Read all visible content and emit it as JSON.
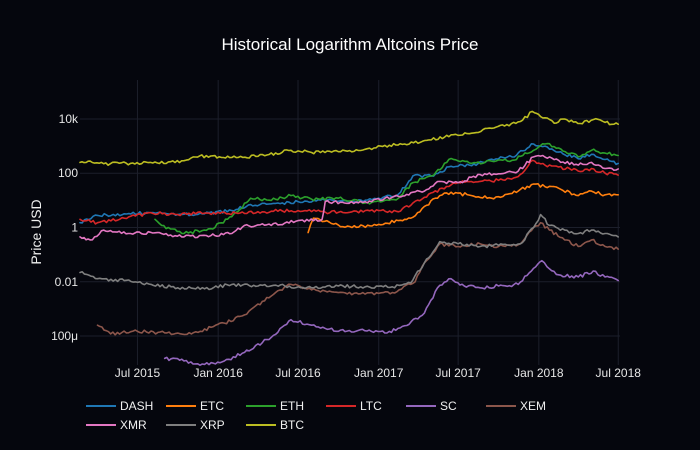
{
  "chart_data": {
    "type": "line",
    "title": "Historical Logarithm Altcoins Price",
    "xlabel": "",
    "ylabel": "Price USD",
    "y_scale": "log",
    "ylim": [
      "0.00002",
      "50000"
    ],
    "xlim": [
      "2015-02-20",
      "2018-07-05"
    ],
    "grid": true,
    "legend_position": "bottom",
    "x_ticks": [
      {
        "date": "2015-07-01",
        "label": "Jul 2015"
      },
      {
        "date": "2016-01-01",
        "label": "Jan 2016"
      },
      {
        "date": "2016-07-01",
        "label": "Jul 2016"
      },
      {
        "date": "2017-01-01",
        "label": "Jan 2017"
      },
      {
        "date": "2017-07-01",
        "label": "Jul 2017"
      },
      {
        "date": "2018-01-01",
        "label": "Jan 2018"
      },
      {
        "date": "2018-07-01",
        "label": "Jul 2018"
      }
    ],
    "y_ticks": [
      {
        "value": 0.0001,
        "label": "100μ"
      },
      {
        "value": 0.01,
        "label": "0.01"
      },
      {
        "value": 1,
        "label": "1"
      },
      {
        "value": 100,
        "label": "100"
      },
      {
        "value": 10000,
        "label": "10k"
      }
    ],
    "series": [
      {
        "name": "DASH",
        "color": "#1f77b4",
        "points": [
          [
            "2015-02-20",
            1.5
          ],
          [
            "2015-04-01",
            2.8
          ],
          [
            "2015-06-01",
            3.2
          ],
          [
            "2015-08-01",
            3.5
          ],
          [
            "2015-10-01",
            3.0
          ],
          [
            "2015-12-01",
            3.2
          ],
          [
            "2016-02-01",
            4.2
          ],
          [
            "2016-03-15",
            7
          ],
          [
            "2016-05-01",
            7.5
          ],
          [
            "2016-07-01",
            9
          ],
          [
            "2016-09-01",
            10
          ],
          [
            "2016-11-01",
            9
          ],
          [
            "2017-01-01",
            12
          ],
          [
            "2017-02-15",
            17
          ],
          [
            "2017-03-20",
            80
          ],
          [
            "2017-05-01",
            80
          ],
          [
            "2017-06-15",
            180
          ],
          [
            "2017-08-01",
            190
          ],
          [
            "2017-09-15",
            330
          ],
          [
            "2017-11-01",
            400
          ],
          [
            "2017-12-20",
            1200
          ],
          [
            "2018-01-15",
            1000
          ],
          [
            "2018-02-15",
            600
          ],
          [
            "2018-04-01",
            340
          ],
          [
            "2018-05-01",
            500
          ],
          [
            "2018-06-01",
            320
          ],
          [
            "2018-07-01",
            230
          ]
        ]
      },
      {
        "name": "ETC",
        "color": "#ff7f0e",
        "points": [
          [
            "2016-07-24",
            0.65
          ],
          [
            "2016-08-05",
            2.2
          ],
          [
            "2016-09-15",
            1.4
          ],
          [
            "2016-11-01",
            1.0
          ],
          [
            "2017-01-01",
            1.3
          ],
          [
            "2017-02-15",
            1.8
          ],
          [
            "2017-03-15",
            2.2
          ],
          [
            "2017-04-15",
            6
          ],
          [
            "2017-05-20",
            15
          ],
          [
            "2017-06-15",
            20
          ],
          [
            "2017-08-01",
            15
          ],
          [
            "2017-09-15",
            12
          ],
          [
            "2017-11-01",
            18
          ],
          [
            "2017-12-20",
            40
          ],
          [
            "2018-01-15",
            32
          ],
          [
            "2018-02-15",
            28
          ],
          [
            "2018-04-01",
            15
          ],
          [
            "2018-05-01",
            22
          ],
          [
            "2018-06-01",
            16
          ],
          [
            "2018-07-01",
            16
          ]
        ]
      },
      {
        "name": "ETH",
        "color": "#2ca02c",
        "points": [
          [
            "2015-08-10",
            2.0
          ],
          [
            "2015-08-25",
            1.2
          ],
          [
            "2015-10-15",
            0.6
          ],
          [
            "2015-12-15",
            0.9
          ],
          [
            "2016-02-01",
            2.5
          ],
          [
            "2016-03-15",
            12
          ],
          [
            "2016-05-01",
            10
          ],
          [
            "2016-06-15",
            15
          ],
          [
            "2016-08-01",
            11
          ],
          [
            "2016-10-01",
            12
          ],
          [
            "2016-12-01",
            8
          ],
          [
            "2017-01-15",
            10
          ],
          [
            "2017-02-15",
            12
          ],
          [
            "2017-03-20",
            45
          ],
          [
            "2017-05-01",
            80
          ],
          [
            "2017-06-15",
            350
          ],
          [
            "2017-08-01",
            230
          ],
          [
            "2017-09-15",
            280
          ],
          [
            "2017-11-01",
            300
          ],
          [
            "2017-12-20",
            700
          ],
          [
            "2018-01-15",
            1200
          ],
          [
            "2018-02-15",
            850
          ],
          [
            "2018-04-01",
            400
          ],
          [
            "2018-05-01",
            700
          ],
          [
            "2018-06-01",
            550
          ],
          [
            "2018-07-01",
            450
          ]
        ]
      },
      {
        "name": "LTC",
        "color": "#d62728",
        "points": [
          [
            "2015-02-20",
            2.0
          ],
          [
            "2015-04-01",
            1.5
          ],
          [
            "2015-06-01",
            2.2
          ],
          [
            "2015-08-01",
            3.5
          ],
          [
            "2015-10-01",
            3.0
          ],
          [
            "2015-12-01",
            3.4
          ],
          [
            "2016-03-01",
            3.3
          ],
          [
            "2016-05-01",
            4
          ],
          [
            "2016-07-01",
            4.2
          ],
          [
            "2016-09-01",
            3.7
          ],
          [
            "2016-11-01",
            3.8
          ],
          [
            "2017-01-01",
            4.2
          ],
          [
            "2017-02-15",
            3.8
          ],
          [
            "2017-03-20",
            8
          ],
          [
            "2017-04-15",
            13
          ],
          [
            "2017-05-25",
            28
          ],
          [
            "2017-07-01",
            45
          ],
          [
            "2017-08-20",
            50
          ],
          [
            "2017-10-01",
            55
          ],
          [
            "2017-11-15",
            75
          ],
          [
            "2017-12-18",
            300
          ],
          [
            "2018-01-15",
            200
          ],
          [
            "2018-02-15",
            170
          ],
          [
            "2018-04-01",
            120
          ],
          [
            "2018-05-01",
            150
          ],
          [
            "2018-06-01",
            100
          ],
          [
            "2018-07-01",
            85
          ]
        ]
      },
      {
        "name": "SC",
        "color": "#9467bd",
        "points": [
          [
            "2015-09-01",
            1.5e-05
          ],
          [
            "2015-10-15",
            1.2e-05
          ],
          [
            "2015-12-01",
            9e-06
          ],
          [
            "2016-01-15",
            1.2e-05
          ],
          [
            "2016-03-01",
            2.5e-05
          ],
          [
            "2016-05-01",
            9e-05
          ],
          [
            "2016-06-15",
            0.0004
          ],
          [
            "2016-08-01",
            0.00025
          ],
          [
            "2016-10-01",
            0.00015
          ],
          [
            "2016-11-15",
            0.00016
          ],
          [
            "2016-12-15",
            0.00015
          ],
          [
            "2017-01-20",
            0.00013
          ],
          [
            "2017-03-01",
            0.00024
          ],
          [
            "2017-04-15",
            0.0007
          ],
          [
            "2017-05-15",
            0.006
          ],
          [
            "2017-06-15",
            0.013
          ],
          [
            "2017-07-15",
            0.007
          ],
          [
            "2017-08-20",
            0.006
          ],
          [
            "2017-10-01",
            0.007
          ],
          [
            "2017-11-15",
            0.008
          ],
          [
            "2017-12-15",
            0.025
          ],
          [
            "2018-01-08",
            0.06
          ],
          [
            "2018-01-25",
            0.03
          ],
          [
            "2018-02-15",
            0.018
          ],
          [
            "2018-04-01",
            0.015
          ],
          [
            "2018-05-05",
            0.025
          ],
          [
            "2018-06-01",
            0.015
          ],
          [
            "2018-07-01",
            0.011
          ]
        ]
      },
      {
        "name": "XEM",
        "color": "#8c564b",
        "points": [
          [
            "2015-04-01",
            0.00025
          ],
          [
            "2015-05-01",
            0.00012
          ],
          [
            "2015-07-01",
            0.00015
          ],
          [
            "2015-09-01",
            0.00013
          ],
          [
            "2015-11-01",
            0.00012
          ],
          [
            "2016-01-15",
            0.0003
          ],
          [
            "2016-03-01",
            0.0006
          ],
          [
            "2016-05-01",
            0.003
          ],
          [
            "2016-06-15",
            0.008
          ],
          [
            "2016-08-01",
            0.005
          ],
          [
            "2016-10-01",
            0.004
          ],
          [
            "2016-12-01",
            0.0035
          ],
          [
            "2017-02-01",
            0.004
          ],
          [
            "2017-03-25",
            0.01
          ],
          [
            "2017-04-15",
            0.05
          ],
          [
            "2017-05-20",
            0.25
          ],
          [
            "2017-07-01",
            0.2
          ],
          [
            "2017-08-20",
            0.25
          ],
          [
            "2017-10-01",
            0.2
          ],
          [
            "2017-11-20",
            0.25
          ],
          [
            "2017-12-20",
            1.0
          ],
          [
            "2018-01-05",
            1.5
          ],
          [
            "2018-01-25",
            0.8
          ],
          [
            "2018-03-01",
            0.35
          ],
          [
            "2018-04-01",
            0.2
          ],
          [
            "2018-05-01",
            0.35
          ],
          [
            "2018-06-01",
            0.2
          ],
          [
            "2018-07-01",
            0.16
          ]
        ]
      },
      {
        "name": "XMR",
        "color": "#e377c2",
        "points": [
          [
            "2015-02-20",
            0.45
          ],
          [
            "2015-03-15",
            0.35
          ],
          [
            "2015-04-15",
            0.8
          ],
          [
            "2015-06-15",
            0.6
          ],
          [
            "2015-08-15",
            0.65
          ],
          [
            "2015-10-15",
            0.45
          ],
          [
            "2015-12-15",
            0.5
          ],
          [
            "2016-02-01",
            0.6
          ],
          [
            "2016-03-01",
            1.2
          ],
          [
            "2016-05-01",
            1.2
          ],
          [
            "2016-07-01",
            1.8
          ],
          [
            "2016-08-25",
            2.0
          ],
          [
            "2016-09-01",
            9
          ],
          [
            "2016-10-15",
            8
          ],
          [
            "2016-12-01",
            9
          ],
          [
            "2017-01-15",
            12
          ],
          [
            "2017-02-15",
            14
          ],
          [
            "2017-03-20",
            20
          ],
          [
            "2017-04-15",
            22
          ],
          [
            "2017-05-20",
            50
          ],
          [
            "2017-07-01",
            45
          ],
          [
            "2017-08-20",
            90
          ],
          [
            "2017-10-01",
            95
          ],
          [
            "2017-11-15",
            120
          ],
          [
            "2017-12-20",
            400
          ],
          [
            "2018-01-10",
            450
          ],
          [
            "2018-02-15",
            300
          ],
          [
            "2018-04-01",
            200
          ],
          [
            "2018-05-01",
            250
          ],
          [
            "2018-06-01",
            150
          ],
          [
            "2018-07-01",
            145
          ]
        ]
      },
      {
        "name": "XRP",
        "color": "#7f7f7f",
        "points": [
          [
            "2015-02-20",
            0.022
          ],
          [
            "2015-04-01",
            0.013
          ],
          [
            "2015-06-01",
            0.011
          ],
          [
            "2015-08-01",
            0.008
          ],
          [
            "2015-10-01",
            0.006
          ],
          [
            "2015-12-01",
            0.0055
          ],
          [
            "2016-02-01",
            0.008
          ],
          [
            "2016-04-01",
            0.007
          ],
          [
            "2016-06-01",
            0.007
          ],
          [
            "2016-08-01",
            0.006
          ],
          [
            "2016-10-01",
            0.007
          ],
          [
            "2016-12-01",
            0.0065
          ],
          [
            "2017-02-01",
            0.0065
          ],
          [
            "2017-03-15",
            0.009
          ],
          [
            "2017-04-15",
            0.05
          ],
          [
            "2017-05-20",
            0.3
          ],
          [
            "2017-07-01",
            0.25
          ],
          [
            "2017-08-20",
            0.2
          ],
          [
            "2017-10-01",
            0.22
          ],
          [
            "2017-11-20",
            0.25
          ],
          [
            "2017-12-20",
            1.0
          ],
          [
            "2018-01-05",
            3.0
          ],
          [
            "2018-01-25",
            1.2
          ],
          [
            "2018-03-01",
            0.8
          ],
          [
            "2018-04-01",
            0.6
          ],
          [
            "2018-05-01",
            0.8
          ],
          [
            "2018-06-01",
            0.6
          ],
          [
            "2018-07-01",
            0.45
          ]
        ]
      },
      {
        "name": "BTC",
        "color": "#bcbd22",
        "points": [
          [
            "2015-02-20",
            250
          ],
          [
            "2015-03-15",
            280
          ],
          [
            "2015-04-15",
            225
          ],
          [
            "2015-06-15",
            230
          ],
          [
            "2015-08-15",
            240
          ],
          [
            "2015-10-15",
            290
          ],
          [
            "2015-11-05",
            400
          ],
          [
            "2015-12-15",
            430
          ],
          [
            "2016-02-01",
            380
          ],
          [
            "2016-04-01",
            420
          ],
          [
            "2016-06-15",
            700
          ],
          [
            "2016-08-01",
            580
          ],
          [
            "2016-10-01",
            620
          ],
          [
            "2016-12-01",
            760
          ],
          [
            "2017-01-05",
            1000
          ],
          [
            "2017-03-01",
            1200
          ],
          [
            "2017-05-01",
            1700
          ],
          [
            "2017-06-15",
            2600
          ],
          [
            "2017-08-01",
            3000
          ],
          [
            "2017-09-01",
            4500
          ],
          [
            "2017-10-15",
            5500
          ],
          [
            "2017-11-25",
            9000
          ],
          [
            "2017-12-17",
            19000
          ],
          [
            "2018-01-15",
            11000
          ],
          [
            "2018-02-05",
            7000
          ],
          [
            "2018-03-01",
            10000
          ],
          [
            "2018-04-05",
            6800
          ],
          [
            "2018-05-05",
            9500
          ],
          [
            "2018-06-01",
            7500
          ],
          [
            "2018-07-01",
            6400
          ]
        ]
      }
    ]
  }
}
